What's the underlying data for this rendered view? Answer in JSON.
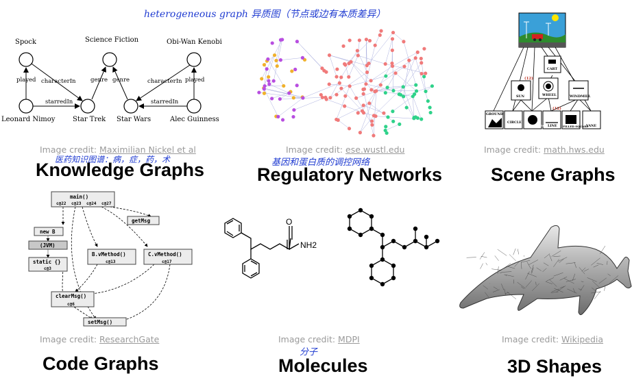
{
  "annotations": {
    "top": "heterogeneous graph  异质图（节点或边有本质差异）",
    "kg": "医药知识图谱：病，症，药，术",
    "reg": "基因和蛋白质的调控网络",
    "mol": "分子"
  },
  "panels": [
    {
      "title": "Knowledge Graphs",
      "credit_prefix": "Image credit: ",
      "credit_link": "Maximilian Nickel et al"
    },
    {
      "title": "Regulatory Networks",
      "credit_prefix": "Image credit: ",
      "credit_link": "ese.wustl.edu"
    },
    {
      "title": "Scene Graphs",
      "credit_prefix": "Image credit: ",
      "credit_link": "math.hws.edu"
    },
    {
      "title": "Code Graphs",
      "credit_prefix": "Image credit: ",
      "credit_link": "ResearchGate"
    },
    {
      "title": "Molecules",
      "credit_prefix": "Image credit: ",
      "credit_link": "MDPI"
    },
    {
      "title": "3D Shapes",
      "credit_prefix": "Image credit: ",
      "credit_link": "Wikipedia"
    }
  ],
  "kg": {
    "nodes": [
      "Spock",
      "Science Fiction",
      "Obi-Wan Kenobi",
      "Leonard Nimoy",
      "Star Trek",
      "Star Wars",
      "Alec Guinness"
    ],
    "edges": [
      "played",
      "characterIn",
      "genre",
      "genre",
      "characterIn",
      "played",
      "starredIn",
      "starredIn"
    ]
  },
  "scene": {
    "nodes": [
      "CART",
      "SUN",
      "WHEEL",
      "WINDMILL",
      "GROUND",
      "CIRCLE",
      "FILLED CIRCLE",
      "LINE",
      "FILLED SQUARE",
      "VANE"
    ],
    "counts": [
      "(12)",
      "(12)"
    ]
  },
  "code": {
    "nodes": [
      "main()",
      "new B",
      "(JVM)",
      "static {}",
      "B.vMethod()",
      "C.vMethod()",
      "getMsg",
      "clearMsg()",
      "setMsg()"
    ],
    "subs": [
      "c@22",
      "c@23",
      "c@24",
      "c@27",
      "c@3",
      "c@13",
      "c@17",
      "c@6"
    ]
  },
  "molecule": {
    "label": "NH2"
  }
}
